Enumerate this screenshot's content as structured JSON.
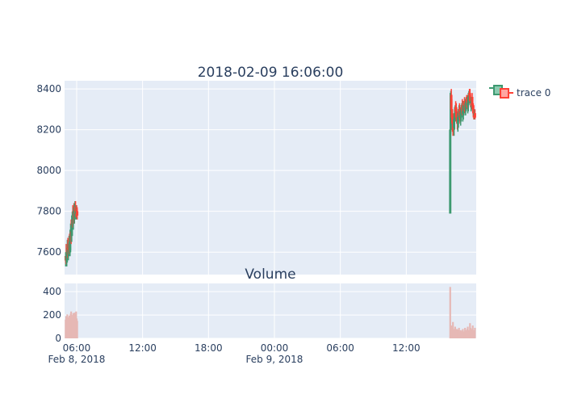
{
  "chart_data": [
    {
      "type": "candlestick",
      "title": "2018-02-09 16:06:00",
      "xlabel": "",
      "ylabel": "",
      "ylim": [
        7490,
        8440
      ],
      "yticks": [
        7600,
        7800,
        8000,
        8200,
        8400
      ],
      "grid": true,
      "legend": {
        "position": "top-right",
        "entries": [
          "trace 0"
        ]
      },
      "colors": {
        "increasing": "#3d9970",
        "decreasing": "#ff4136",
        "plot_bg": "#e5ecf6",
        "grid": "#ffffff",
        "text": "#2a3f5f"
      },
      "series": [
        {
          "name": "trace 0",
          "groups": [
            {
              "x": [
                "2018-02-08 05:00",
                "2018-02-08 05:03",
                "2018-02-08 05:06",
                "2018-02-08 05:09",
                "2018-02-08 05:12",
                "2018-02-08 05:15",
                "2018-02-08 05:18",
                "2018-02-08 05:21",
                "2018-02-08 05:24",
                "2018-02-08 05:27",
                "2018-02-08 05:30",
                "2018-02-08 05:33",
                "2018-02-08 05:36",
                "2018-02-08 05:39",
                "2018-02-08 05:42",
                "2018-02-08 05:45",
                "2018-02-08 05:48",
                "2018-02-08 05:51",
                "2018-02-08 05:54",
                "2018-02-08 05:57",
                "2018-02-08 06:00",
                "2018-02-08 06:03"
              ],
              "open": [
                7560,
                7580,
                7550,
                7600,
                7620,
                7590,
                7610,
                7640,
                7600,
                7650,
                7700,
                7680,
                7730,
                7760,
                7740,
                7790,
                7770,
                7800,
                7820,
                7790,
                7810,
                7800
              ],
              "high": [
                7600,
                7640,
                7620,
                7660,
                7670,
                7640,
                7680,
                7690,
                7710,
                7740,
                7760,
                7780,
                7800,
                7830,
                7820,
                7840,
                7840,
                7850,
                7850,
                7830,
                7830,
                7820
              ],
              "low": [
                7530,
                7540,
                7530,
                7560,
                7570,
                7560,
                7580,
                7590,
                7580,
                7610,
                7640,
                7650,
                7680,
                7720,
                7710,
                7740,
                7740,
                7760,
                7770,
                7760,
                7770,
                7760
              ],
              "close": [
                7580,
                7550,
                7600,
                7620,
                7590,
                7610,
                7640,
                7600,
                7650,
                7700,
                7680,
                7730,
                7760,
                7740,
                7790,
                7770,
                7800,
                7820,
                7790,
                7810,
                7800,
                7780
              ]
            },
            {
              "x": [
                "2018-02-09 16:00",
                "2018-02-09 16:03",
                "2018-02-09 16:06",
                "2018-02-09 16:09",
                "2018-02-09 16:12",
                "2018-02-09 16:15",
                "2018-02-09 16:18",
                "2018-02-09 16:21",
                "2018-02-09 16:24",
                "2018-02-09 16:27",
                "2018-02-09 16:30",
                "2018-02-09 16:33",
                "2018-02-09 16:36",
                "2018-02-09 16:39",
                "2018-02-09 16:42",
                "2018-02-09 16:45",
                "2018-02-09 16:48",
                "2018-02-09 16:51",
                "2018-02-09 16:54",
                "2018-02-09 16:57",
                "2018-02-09 17:00",
                "2018-02-09 17:03",
                "2018-02-09 17:06",
                "2018-02-09 17:09",
                "2018-02-09 17:12",
                "2018-02-09 17:15",
                "2018-02-09 17:18",
                "2018-02-09 17:21",
                "2018-02-09 17:24",
                "2018-02-09 17:27",
                "2018-02-09 17:30",
                "2018-02-09 17:33",
                "2018-02-09 17:36",
                "2018-02-09 17:39",
                "2018-02-09 17:42",
                "2018-02-09 17:45",
                "2018-02-09 17:48",
                "2018-02-09 17:51",
                "2018-02-09 17:54",
                "2018-02-09 17:57",
                "2018-02-09 18:00",
                "2018-02-09 18:03",
                "2018-02-09 18:06",
                "2018-02-09 18:09",
                "2018-02-09 18:12",
                "2018-02-09 18:15"
              ],
              "open": [
                7790,
                8200,
                8370,
                8300,
                8260,
                8240,
                8230,
                8210,
                8250,
                8280,
                8310,
                8290,
                8270,
                8250,
                8230,
                8260,
                8280,
                8300,
                8270,
                8260,
                8290,
                8300,
                8320,
                8280,
                8290,
                8310,
                8340,
                8320,
                8300,
                8330,
                8350,
                8340,
                8320,
                8330,
                8360,
                8380,
                8370,
                8350,
                8330,
                8340,
                8360,
                8320,
                8300,
                8290,
                8270,
                8280
              ],
              "high": [
                8380,
                8390,
                8400,
                8350,
                8300,
                8280,
                8270,
                8260,
                8300,
                8320,
                8340,
                8330,
                8310,
                8290,
                8280,
                8300,
                8320,
                8330,
                8310,
                8300,
                8320,
                8330,
                8350,
                8320,
                8320,
                8340,
                8360,
                8350,
                8340,
                8360,
                8370,
                8370,
                8350,
                8360,
                8390,
                8400,
                8400,
                8380,
                8360,
                8360,
                8380,
                8360,
                8330,
                8320,
                8300,
                8300
              ],
              "low": [
                7790,
                8180,
                8290,
                8230,
                8190,
                8170,
                8180,
                8170,
                8200,
                8240,
                8260,
                8240,
                8230,
                8200,
                8190,
                8210,
                8240,
                8250,
                8230,
                8220,
                8240,
                8260,
                8270,
                8240,
                8250,
                8270,
                8290,
                8280,
                8270,
                8290,
                8310,
                8300,
                8280,
                8290,
                8320,
                8340,
                8330,
                8310,
                8290,
                8300,
                8310,
                8280,
                8260,
                8250,
                8250,
                8250
              ],
              "close": [
                8200,
                8370,
                8300,
                8260,
                8240,
                8230,
                8210,
                8250,
                8280,
                8310,
                8290,
                8270,
                8250,
                8230,
                8260,
                8280,
                8300,
                8270,
                8260,
                8290,
                8300,
                8320,
                8280,
                8290,
                8310,
                8340,
                8320,
                8300,
                8330,
                8350,
                8340,
                8320,
                8330,
                8360,
                8380,
                8370,
                8350,
                8330,
                8340,
                8360,
                8320,
                8300,
                8290,
                8270,
                8280,
                8260
              ]
            }
          ]
        }
      ]
    },
    {
      "type": "bar",
      "title": "Volume",
      "xlabel": "",
      "ylabel": "",
      "ylim": [
        0,
        470
      ],
      "yticks": [
        0,
        200,
        400
      ],
      "xticks": [
        "06:00",
        "12:00",
        "18:00",
        "00:00",
        "06:00",
        "12:00"
      ],
      "xticks_date": [
        "Feb 8, 2018",
        "",
        "",
        "Feb 9, 2018",
        "",
        ""
      ],
      "grid": true,
      "color": "#e6b8b5",
      "series": [
        {
          "name": "",
          "groups": [
            {
              "x": [
                "2018-02-08 05:00",
                "2018-02-08 05:03",
                "2018-02-08 05:06",
                "2018-02-08 05:09",
                "2018-02-08 05:12",
                "2018-02-08 05:15",
                "2018-02-08 05:18",
                "2018-02-08 05:21",
                "2018-02-08 05:24",
                "2018-02-08 05:27",
                "2018-02-08 05:30",
                "2018-02-08 05:33",
                "2018-02-08 05:36",
                "2018-02-08 05:39",
                "2018-02-08 05:42",
                "2018-02-08 05:45",
                "2018-02-08 05:48",
                "2018-02-08 05:51",
                "2018-02-08 05:54",
                "2018-02-08 05:57",
                "2018-02-08 06:00",
                "2018-02-08 06:03"
              ],
              "values": [
                160,
                190,
                150,
                205,
                180,
                140,
                170,
                195,
                160,
                210,
                230,
                175,
                150,
                200,
                215,
                180,
                220,
                190,
                210,
                230,
                170,
                150
              ]
            },
            {
              "x": [
                "2018-02-09 16:00",
                "2018-02-09 16:03",
                "2018-02-09 16:06",
                "2018-02-09 16:09",
                "2018-02-09 16:12",
                "2018-02-09 16:15",
                "2018-02-09 16:18",
                "2018-02-09 16:21",
                "2018-02-09 16:24",
                "2018-02-09 16:27",
                "2018-02-09 16:30",
                "2018-02-09 16:33",
                "2018-02-09 16:36",
                "2018-02-09 16:39",
                "2018-02-09 16:42",
                "2018-02-09 16:45",
                "2018-02-09 16:48",
                "2018-02-09 16:51",
                "2018-02-09 16:54",
                "2018-02-09 16:57",
                "2018-02-09 17:00",
                "2018-02-09 17:03",
                "2018-02-09 17:06",
                "2018-02-09 17:09",
                "2018-02-09 17:12",
                "2018-02-09 17:15",
                "2018-02-09 17:18",
                "2018-02-09 17:21",
                "2018-02-09 17:24",
                "2018-02-09 17:27",
                "2018-02-09 17:30",
                "2018-02-09 17:33",
                "2018-02-09 17:36",
                "2018-02-09 17:39",
                "2018-02-09 17:42",
                "2018-02-09 17:45",
                "2018-02-09 17:48",
                "2018-02-09 17:51",
                "2018-02-09 17:54",
                "2018-02-09 17:57",
                "2018-02-09 18:00",
                "2018-02-09 18:03",
                "2018-02-09 18:06",
                "2018-02-09 18:09",
                "2018-02-09 18:12",
                "2018-02-09 18:15"
              ],
              "values": [
                440,
                60,
                110,
                70,
                90,
                140,
                60,
                80,
                50,
                100,
                70,
                55,
                80,
                40,
                60,
                75,
                90,
                50,
                60,
                70,
                40,
                55,
                65,
                80,
                50,
                45,
                60,
                90,
                70,
                55,
                60,
                80,
                100,
                60,
                50,
                70,
                130,
                90,
                60,
                75,
                80,
                110,
                60,
                70,
                50,
                90
              ]
            }
          ]
        }
      ]
    }
  ]
}
